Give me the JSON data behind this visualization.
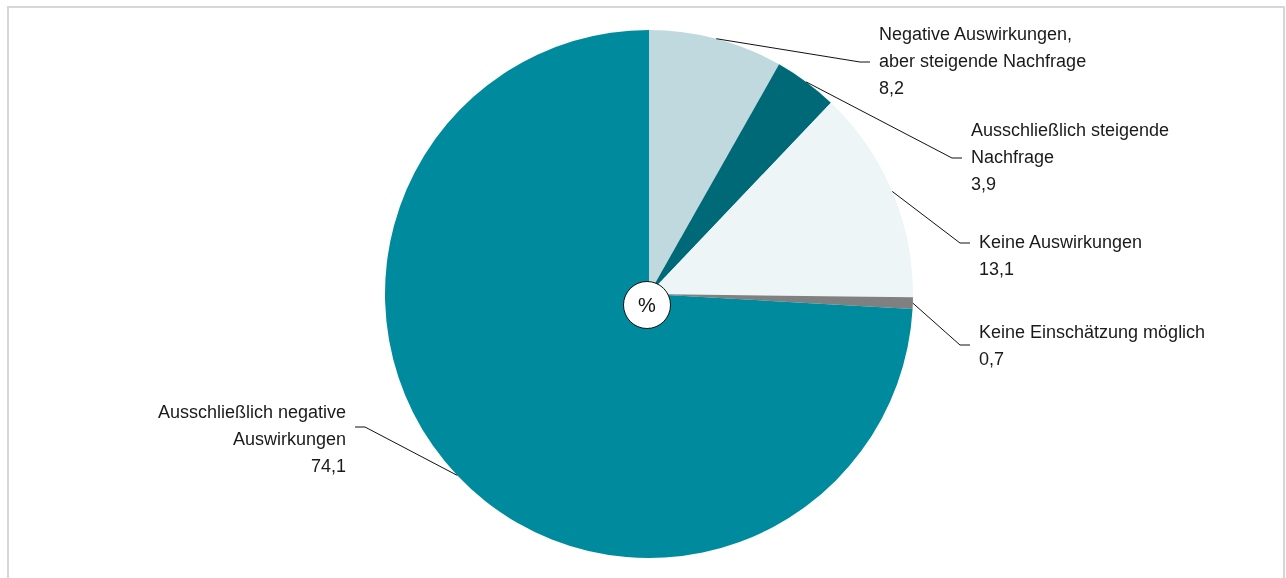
{
  "chart_data": {
    "type": "pie",
    "categories": [
      "Negative Auswirkungen, aber steigende Nachfrage",
      "Ausschließlich steigende Nachfrage",
      "Keine Auswirkungen",
      "Keine Einschätzung möglich",
      "Ausschließlich negative Auswirkungen"
    ],
    "values": [
      8.2,
      3.9,
      13.1,
      0.7,
      74.1
    ],
    "colors": [
      "#bfd9de",
      "#006978",
      "#edf5f7",
      "#808080",
      "#008a9e"
    ],
    "value_labels": [
      "8,2",
      "3,9",
      "13,1",
      "0,7",
      "74,1"
    ],
    "annotations": [
      "%"
    ]
  }
}
